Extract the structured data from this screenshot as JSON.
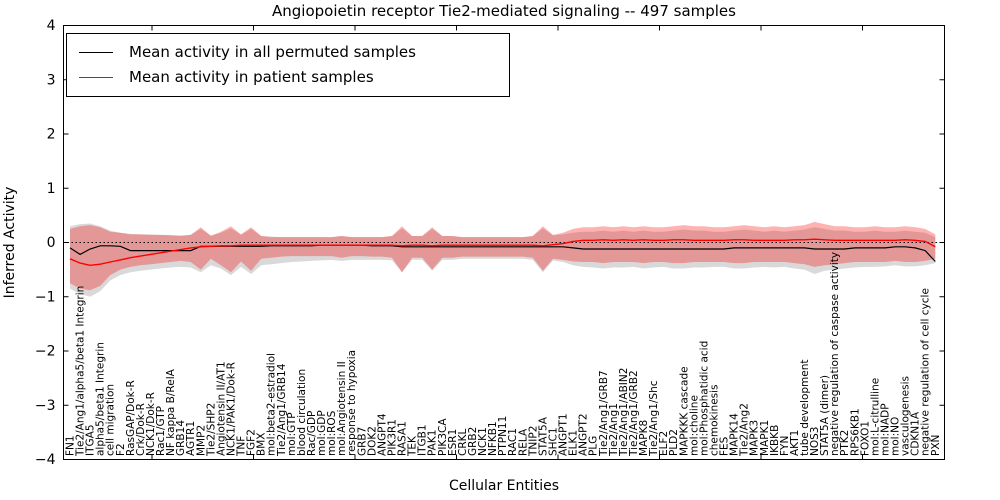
{
  "figure": {
    "title": "Angiopoietin receptor Tie2-mediated signaling -- 497 samples",
    "xlabel": "Cellular Entities",
    "ylabel": "Inferred Activity"
  },
  "legend": {
    "items": [
      {
        "label": "Mean activity in all permuted samples",
        "color": "#000000"
      },
      {
        "label": "Mean activity in patient samples",
        "color": "#ff0000"
      }
    ]
  },
  "chart_data": {
    "type": "line",
    "title": "Angiopoietin receptor Tie2-mediated signaling -- 497 samples",
    "xlabel": "Cellular Entities",
    "ylabel": "Inferred Activity",
    "ylim": [
      -4,
      4
    ],
    "yticks": [
      4,
      3,
      2,
      1,
      0,
      -1,
      -2,
      -3,
      -4
    ],
    "grid": false,
    "legend_position": "upper left",
    "zero_line_style": "dotted",
    "categories": [
      "FN1",
      "Tie2/Ang1/alpha5/beta1 Integrin",
      "ITGA5",
      "alpha5/beta1 Integrin",
      "cell migration",
      "F2",
      "RasGAP/Dok-R",
      "Crk/Dok-R",
      "NCK1/Dok-R",
      "Rac1/GTP",
      "NF kappa B/RelA",
      "GRB14",
      "AGTR1",
      "MMP2",
      "Tie2/SHP2",
      "Angiotensin II/AT1",
      "NCK1/PAK1/Dok-R",
      "TNF",
      "FGF2",
      "BMX",
      "mol:beta2-estradiol",
      "Tie2/Ang1/GRB14",
      "mol:GTP",
      "blood circulation",
      "Rac/GDP",
      "mol:GDP",
      "mol:ROS",
      "mol:Angiotensin II",
      "response to hypoxia",
      "GRB7",
      "DOK2",
      "ANGPT4",
      "PIK3R1",
      "RASA1",
      "TEK",
      "ITGB1",
      "PAK1",
      "PIK3CA",
      "ESR1",
      "CRKL",
      "GRB2",
      "NCK1",
      "NFKB1",
      "PTPN11",
      "RAC1",
      "RELA",
      "TNIP2",
      "STAT5A",
      "SHC1",
      "ANGPT1",
      "ELK1",
      "ANGPT2",
      "PLG",
      "Tie2/Ang1/GRB7",
      "Tie2/Ang1",
      "Tie2/Ang1/ABIN2",
      "Tie2/Ang1/GRB2",
      "MAPK8",
      "Tie2/Ang1/Shc",
      "ELF2",
      "PLD2",
      "MAPKKK cascade",
      "mol:choline",
      "mol:Phosphatidic acid",
      "chemokinesis",
      "FES",
      "MAPK14",
      "Tie2/Ang2",
      "MAPK3",
      "MAPK1",
      "IKBKB",
      "FYN",
      "AKT1",
      "tube development",
      "NOS3",
      "STAT5A (dimer)",
      "negative regulation of caspase activity",
      "PTK2",
      "RPS6KB1",
      "FOXO1",
      "mol:L-citrulline",
      "mol:NADP",
      "mol:NO",
      "vasculogenesis",
      "CDKN1A",
      "negative regulation of cell cycle",
      "PXN"
    ],
    "series": [
      {
        "name": "Mean activity in all permuted samples",
        "color": "#000000",
        "width": 1.2,
        "values": [
          -0.1,
          -0.22,
          -0.12,
          -0.06,
          -0.06,
          -0.07,
          -0.15,
          -0.15,
          -0.15,
          -0.15,
          -0.15,
          -0.15,
          -0.15,
          -0.07,
          -0.07,
          -0.07,
          -0.07,
          -0.07,
          -0.07,
          -0.07,
          -0.06,
          -0.06,
          -0.06,
          -0.06,
          -0.06,
          -0.05,
          -0.05,
          -0.05,
          -0.05,
          -0.05,
          -0.06,
          -0.06,
          -0.06,
          -0.08,
          -0.08,
          -0.08,
          -0.08,
          -0.08,
          -0.08,
          -0.08,
          -0.08,
          -0.08,
          -0.08,
          -0.08,
          -0.08,
          -0.08,
          -0.08,
          -0.08,
          -0.08,
          -0.08,
          -0.1,
          -0.12,
          -0.12,
          -0.12,
          -0.12,
          -0.12,
          -0.12,
          -0.12,
          -0.12,
          -0.12,
          -0.12,
          -0.12,
          -0.12,
          -0.12,
          -0.12,
          -0.12,
          -0.1,
          -0.1,
          -0.1,
          -0.1,
          -0.1,
          -0.1,
          -0.1,
          -0.1,
          -0.12,
          -0.12,
          -0.12,
          -0.12,
          -0.1,
          -0.1,
          -0.1,
          -0.1,
          -0.08,
          -0.08,
          -0.1,
          -0.15,
          -0.35
        ]
      },
      {
        "name": "Mean activity in patient samples",
        "color": "#ff0000",
        "width": 1.4,
        "values": [
          -0.3,
          -0.38,
          -0.42,
          -0.4,
          -0.36,
          -0.32,
          -0.28,
          -0.25,
          -0.22,
          -0.19,
          -0.16,
          -0.13,
          -0.1,
          -0.08,
          -0.07,
          -0.06,
          -0.06,
          -0.05,
          -0.05,
          -0.05,
          -0.05,
          -0.05,
          -0.05,
          -0.05,
          -0.05,
          -0.05,
          -0.05,
          -0.05,
          -0.05,
          -0.05,
          -0.05,
          -0.05,
          -0.05,
          -0.06,
          -0.05,
          -0.05,
          -0.06,
          -0.05,
          -0.05,
          -0.05,
          -0.05,
          -0.05,
          -0.05,
          -0.05,
          -0.05,
          -0.05,
          -0.05,
          -0.06,
          -0.04,
          -0.02,
          0.02,
          0.04,
          0.04,
          0.05,
          0.04,
          0.05,
          0.04,
          0.05,
          0.04,
          0.04,
          0.05,
          0.05,
          0.04,
          0.04,
          0.04,
          0.04,
          0.05,
          0.05,
          0.04,
          0.04,
          0.04,
          0.04,
          0.05,
          0.05,
          0.06,
          0.05,
          0.04,
          0.04,
          0.04,
          0.04,
          0.04,
          0.04,
          0.04,
          0.05,
          0.04,
          0.02,
          -0.08
        ]
      }
    ],
    "bands": [
      {
        "name": "permuted-samples-range",
        "color": "#808080",
        "alpha": 0.3,
        "upper": [
          0.3,
          0.34,
          0.35,
          0.3,
          0.22,
          0.18,
          0.16,
          0.15,
          0.15,
          0.14,
          0.14,
          0.13,
          0.14,
          0.25,
          0.13,
          0.18,
          0.26,
          0.14,
          0.25,
          0.12,
          0.11,
          0.1,
          0.1,
          0.1,
          0.1,
          0.1,
          0.1,
          0.12,
          0.1,
          0.1,
          0.1,
          0.1,
          0.12,
          0.26,
          0.12,
          0.12,
          0.25,
          0.12,
          0.12,
          0.1,
          0.1,
          0.1,
          0.1,
          0.1,
          0.1,
          0.1,
          0.12,
          0.26,
          0.13,
          0.15,
          0.18,
          0.2,
          0.2,
          0.22,
          0.2,
          0.22,
          0.2,
          0.22,
          0.2,
          0.2,
          0.22,
          0.24,
          0.22,
          0.22,
          0.2,
          0.2,
          0.22,
          0.24,
          0.22,
          0.2,
          0.22,
          0.2,
          0.22,
          0.24,
          0.28,
          0.25,
          0.22,
          0.22,
          0.2,
          0.2,
          0.22,
          0.2,
          0.2,
          0.22,
          0.2,
          0.18,
          0.1
        ],
        "lower": [
          -0.85,
          -0.95,
          -1.0,
          -0.9,
          -0.7,
          -0.6,
          -0.55,
          -0.52,
          -0.5,
          -0.48,
          -0.46,
          -0.45,
          -0.46,
          -0.55,
          -0.42,
          -0.48,
          -0.6,
          -0.45,
          -0.58,
          -0.42,
          -0.4,
          -0.38,
          -0.36,
          -0.35,
          -0.34,
          -0.33,
          -0.32,
          -0.34,
          -0.32,
          -0.32,
          -0.32,
          -0.32,
          -0.33,
          -0.55,
          -0.32,
          -0.32,
          -0.52,
          -0.32,
          -0.32,
          -0.3,
          -0.3,
          -0.3,
          -0.3,
          -0.3,
          -0.3,
          -0.3,
          -0.32,
          -0.55,
          -0.33,
          -0.36,
          -0.42,
          -0.45,
          -0.46,
          -0.48,
          -0.46,
          -0.46,
          -0.45,
          -0.48,
          -0.46,
          -0.45,
          -0.48,
          -0.48,
          -0.46,
          -0.46,
          -0.45,
          -0.45,
          -0.48,
          -0.48,
          -0.46,
          -0.45,
          -0.46,
          -0.45,
          -0.48,
          -0.5,
          -0.58,
          -0.52,
          -0.5,
          -0.48,
          -0.46,
          -0.45,
          -0.45,
          -0.44,
          -0.42,
          -0.44,
          -0.44,
          -0.42,
          -0.38
        ]
      },
      {
        "name": "patient-samples-range",
        "color": "#ff0000",
        "alpha": 0.3,
        "upper": [
          0.25,
          0.3,
          0.32,
          0.28,
          0.2,
          0.18,
          0.15,
          0.15,
          0.14,
          0.14,
          0.13,
          0.12,
          0.14,
          0.28,
          0.12,
          0.2,
          0.3,
          0.15,
          0.28,
          0.12,
          0.1,
          0.1,
          0.1,
          0.1,
          0.1,
          0.1,
          0.1,
          0.12,
          0.1,
          0.1,
          0.1,
          0.1,
          0.12,
          0.3,
          0.12,
          0.12,
          0.28,
          0.12,
          0.12,
          0.1,
          0.1,
          0.1,
          0.1,
          0.1,
          0.1,
          0.1,
          0.12,
          0.3,
          0.14,
          0.18,
          0.25,
          0.28,
          0.28,
          0.3,
          0.28,
          0.3,
          0.28,
          0.3,
          0.28,
          0.28,
          0.3,
          0.32,
          0.3,
          0.3,
          0.28,
          0.28,
          0.3,
          0.32,
          0.3,
          0.28,
          0.3,
          0.28,
          0.3,
          0.32,
          0.38,
          0.34,
          0.3,
          0.3,
          0.28,
          0.28,
          0.3,
          0.28,
          0.28,
          0.3,
          0.28,
          0.25,
          0.15
        ],
        "lower": [
          -0.75,
          -0.85,
          -0.88,
          -0.8,
          -0.6,
          -0.5,
          -0.45,
          -0.42,
          -0.4,
          -0.38,
          -0.36,
          -0.34,
          -0.36,
          -0.5,
          -0.3,
          -0.42,
          -0.55,
          -0.35,
          -0.52,
          -0.3,
          -0.28,
          -0.26,
          -0.25,
          -0.25,
          -0.25,
          -0.25,
          -0.25,
          -0.28,
          -0.25,
          -0.25,
          -0.26,
          -0.26,
          -0.28,
          -0.55,
          -0.28,
          -0.28,
          -0.5,
          -0.28,
          -0.28,
          -0.26,
          -0.26,
          -0.26,
          -0.26,
          -0.26,
          -0.26,
          -0.26,
          -0.28,
          -0.52,
          -0.3,
          -0.32,
          -0.35,
          -0.36,
          -0.36,
          -0.38,
          -0.36,
          -0.36,
          -0.36,
          -0.38,
          -0.36,
          -0.36,
          -0.38,
          -0.38,
          -0.36,
          -0.36,
          -0.36,
          -0.36,
          -0.38,
          -0.38,
          -0.36,
          -0.36,
          -0.36,
          -0.36,
          -0.38,
          -0.4,
          -0.45,
          -0.42,
          -0.4,
          -0.38,
          -0.36,
          -0.36,
          -0.36,
          -0.36,
          -0.34,
          -0.36,
          -0.36,
          -0.34,
          -0.3
        ]
      }
    ]
  }
}
